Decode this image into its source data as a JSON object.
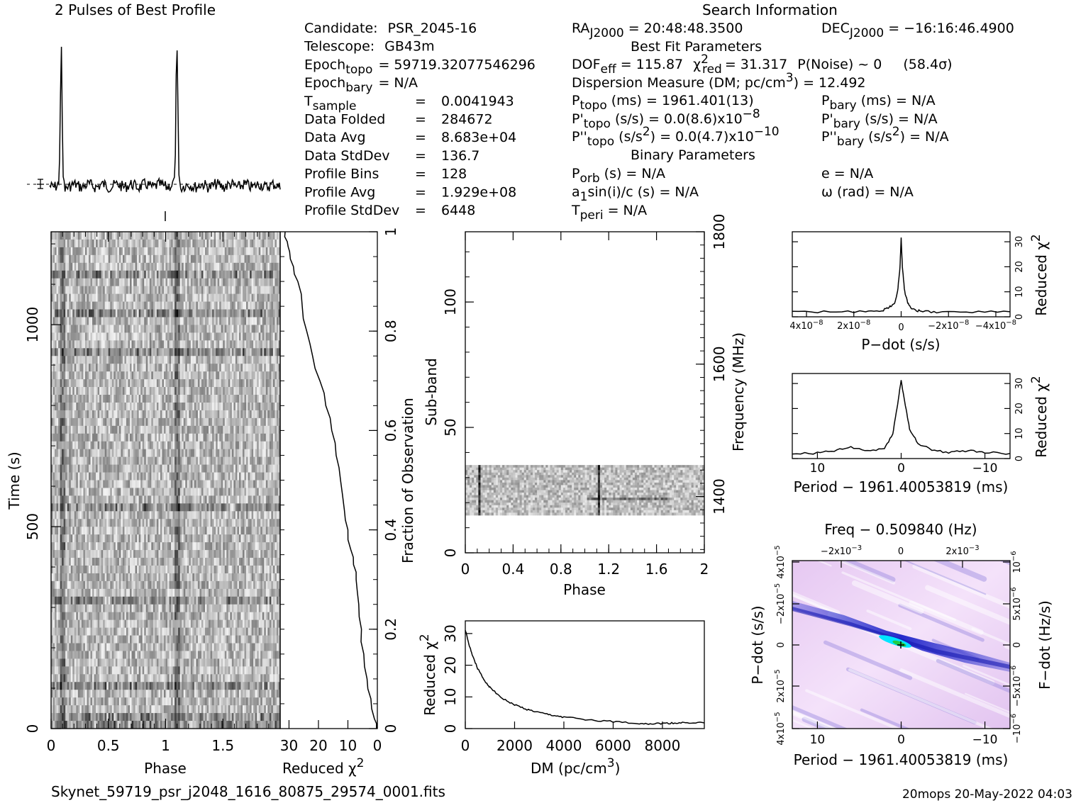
{
  "page": {
    "profile_title": "2 Pulses of Best Profile",
    "search_title": "Search Information",
    "filename": "Skynet_59719_psr_j2048_1616_80875_29574_0001.fits",
    "footer": "20mops 20-May-2022 04:03"
  },
  "info": {
    "col1": [
      {
        "label": "Candidate:",
        "value": "PSR_2045-16"
      },
      {
        "label": "Telescope:",
        "value": "GB43m"
      },
      {
        "label": "Epoch",
        "sub": "topo",
        "value": "= 59719.32077546296"
      },
      {
        "label": "Epoch",
        "sub": "bary",
        "value": "= N/A"
      },
      {
        "label": "T",
        "sub": "sample",
        "value": "0.0041943"
      },
      {
        "label": "Data Folded",
        "value": "284672"
      },
      {
        "label": "Data Avg",
        "value": "8.683e+04"
      },
      {
        "label": "Data StdDev",
        "value": "136.7"
      },
      {
        "label": "Profile Bins",
        "value": "128"
      },
      {
        "label": "Profile Avg",
        "value": "1.929e+08"
      },
      {
        "label": "Profile StdDev",
        "value": "6448"
      }
    ],
    "ra": "RA",
    "ra_sub": "J2000",
    "ra_value": "= 20:48:48.3500",
    "dec": "DEC",
    "dec_sub": "J2000",
    "dec_value": "= −16:16:46.4900",
    "best_fit_header": "Best Fit Parameters",
    "dof": "DOF",
    "dof_sub": "eff",
    "dof_value": "= 115.87",
    "chi_sub": "red",
    "chi_value": "= 31.317",
    "pnoise": "P(Noise) ~ 0",
    "sigma": "(58.4σ)",
    "dm_line": "Dispersion Measure (DM; pc/cm",
    "dm_value": ") = 12.492",
    "ptopo": "P",
    "ptopo_sub": "topo",
    "ptopo_value": "(ms) =  1961.401(13)",
    "pdtopo_value": "(s/s) = 0.0(8.6)x10",
    "pdtopo_exp": "−8",
    "pddtopo_value": "(s/s",
    "pddtopo_value2": ") = 0.0(4.7)x10",
    "pddtopo_exp": "−10",
    "pbary_value": "(ms) = N/A",
    "pdbary_value": "(s/s) = N/A",
    "pddbary_value": "(s/s",
    "pddbary_value2": ") = N/A",
    "binary_header": "Binary Parameters",
    "porb": "P",
    "porb_sub": "orb",
    "porb_value": "(s) = N/A",
    "a1": "a",
    "a1_value": "sin(i)/c (s) = N/A",
    "tperi": "T",
    "tperi_sub": "peri",
    "tperi_value": "= N/A",
    "ecc": "e = N/A",
    "omega": "ω (rad) = N/A"
  },
  "axes": {
    "time_label": "Time (s)",
    "phase_label": "Phase",
    "redchi_label": "Reduced χ",
    "fraction_label": "Fraction of Observation",
    "subband_label": "Sub-band",
    "frequency_label": "Frequency (MHz)",
    "dm_label": "DM (pc/cm",
    "pdot_label": "P−dot (s/s)",
    "period_label": "Period − 1961.40053819 (ms)",
    "freq_label": "Freq − 0.509840 (Hz)",
    "fdot_label": "F−dot (Hz/s)"
  },
  "ticks": {
    "time_y": [
      "0",
      "500",
      "1000"
    ],
    "phase_x": [
      "0",
      "0.5",
      "1",
      "1.5"
    ],
    "redchi_x": [
      "30",
      "20",
      "10",
      "0"
    ],
    "fraction_y": [
      "0",
      "0.2",
      "0.4",
      "0.6",
      "0.8",
      "1"
    ],
    "subband_y": [
      "0",
      "50",
      "100"
    ],
    "subphase_x": [
      "0",
      "0.4",
      "0.8",
      "1.2",
      "1.6",
      "2"
    ],
    "freq_y": [
      "1400",
      "1600",
      "1800"
    ],
    "dm_x": [
      "0",
      "2000",
      "4000",
      "6000",
      "8000"
    ],
    "dm_y": [
      "0",
      "10",
      "20",
      "30"
    ],
    "pdot_x": [
      "4x10",
      "2x10",
      "0",
      "−2x10",
      "−4x10"
    ],
    "pdot_exp": "−8",
    "chi_y": [
      "0",
      "10",
      "20",
      "30"
    ],
    "period_x": [
      "10",
      "0",
      "−10"
    ],
    "freq_top": [
      "−2x10",
      "0",
      "2x10"
    ],
    "freq_exp": "−3",
    "pdot_y": [
      "4x10",
      "2x10",
      "0",
      "−2x10",
      "4x10"
    ],
    "pdot_y_exp": "−5",
    "fdot_y": [
      "−10",
      "−5x10",
      "0",
      "5x10",
      "10"
    ],
    "fdot_exp": "−6"
  },
  "colors": {
    "ink": "#000000",
    "grey_dark": "#2e2e2e",
    "ppdot_bg": "#f0d8f8",
    "ppdot_blue": "#2a2fd0",
    "ppdot_cyan": "#00e5ff",
    "ppdot_green": "#22cc44"
  },
  "chart_data": [
    {
      "type": "line",
      "title": "2 Pulses of Best Profile",
      "xlabel": "",
      "ylabel": "",
      "description_values": {
        "pulse_phases": [
          0.1,
          1.1
        ],
        "bins_per_pulse": 128
      }
    },
    {
      "type": "heatmap",
      "xlabel": "Phase",
      "ylabel": "Time (s)",
      "xlim": [
        0,
        2
      ],
      "ylim": [
        0,
        1230
      ]
    },
    {
      "type": "line",
      "xlabel": "Reduced χ2",
      "ylabel": "Fraction of Observation",
      "xlim": [
        33,
        0
      ],
      "ylim": [
        0,
        1
      ],
      "x": [
        0.3,
        1.0,
        2.2,
        3.5,
        4.6,
        5.4,
        6.3,
        7.2,
        8.1,
        9.0,
        10.0,
        11.2,
        12.5,
        14.0,
        15.5,
        17.5,
        19.5,
        22.0,
        24.0,
        25.5,
        27.0,
        28.5,
        29.8,
        30.6,
        31.317
      ],
      "y": [
        0.0,
        0.02,
        0.06,
        0.1,
        0.15,
        0.2,
        0.25,
        0.3,
        0.33,
        0.36,
        0.4,
        0.44,
        0.5,
        0.55,
        0.6,
        0.65,
        0.7,
        0.75,
        0.8,
        0.85,
        0.9,
        0.93,
        0.96,
        0.98,
        1.0
      ]
    },
    {
      "type": "heatmap",
      "xlabel": "Phase",
      "ylabel": "Sub-band",
      "xlim": [
        0,
        2
      ],
      "ylim": [
        0,
        128
      ],
      "occupied_subbands": [
        15,
        35
      ],
      "y2label": "Frequency (MHz)",
      "y2ticks": [
        1400,
        1600,
        1800
      ]
    },
    {
      "type": "line",
      "xlabel": "DM (pc/cm3)",
      "ylabel": "Reduced χ2",
      "xlim": [
        0,
        9700
      ],
      "ylim": [
        0,
        34
      ],
      "x": [
        0,
        100,
        250,
        500,
        750,
        1000,
        1500,
        2000,
        2500,
        3000,
        3500,
        4000,
        5000,
        6000,
        7000,
        7500,
        8000,
        8500,
        9000,
        9700
      ],
      "y": [
        31.3,
        28,
        24,
        19,
        15.5,
        13,
        9.5,
        7.5,
        6,
        5,
        4.2,
        3.6,
        2.8,
        2.2,
        1.7,
        1.5,
        1.6,
        1.7,
        1.9,
        1.8
      ]
    },
    {
      "type": "line",
      "xlabel": "P−dot (s/s)",
      "ylabel": "Reduced χ2",
      "xlim": [
        4.6e-08,
        -4.6e-08
      ],
      "ylim": [
        0,
        34
      ],
      "x": [
        4.6e-08,
        3e-08,
        1.5e-08,
        8e-09,
        5e-09,
        3e-09,
        1.5e-09,
        5e-10,
        0,
        -5e-10,
        -1.5e-09,
        -3e-09,
        -5e-09,
        -8e-09,
        -1.5e-08,
        -3e-08,
        -4.6e-08
      ],
      "y": [
        2,
        2,
        2,
        2.5,
        4,
        5,
        10,
        20,
        31.3,
        20,
        10,
        5,
        3,
        2.2,
        2,
        2,
        2
      ]
    },
    {
      "type": "line",
      "xlabel": "Period − 1961.40053819 (ms)",
      "ylabel": "Reduced χ2",
      "xlim": [
        13,
        -13
      ],
      "ylim": [
        0,
        34
      ],
      "x": [
        13,
        10,
        8,
        6,
        4,
        2,
        1,
        0.5,
        0,
        -0.5,
        -1,
        -2,
        -4,
        -6,
        -8,
        -10,
        -13
      ],
      "y": [
        2,
        2.2,
        3,
        4.5,
        3,
        4,
        10,
        20,
        31.3,
        21,
        12,
        6,
        3,
        2.5,
        3.2,
        2.5,
        2
      ]
    },
    {
      "type": "heatmap",
      "xlabel": "Period − 1961.40053819 (ms)",
      "ylabel": "P−dot (s/s)",
      "xlim": [
        13,
        -13
      ],
      "top_xlabel": "Freq − 0.509840 (Hz)",
      "right_ylabel": "F−dot (Hz/s)"
    }
  ]
}
